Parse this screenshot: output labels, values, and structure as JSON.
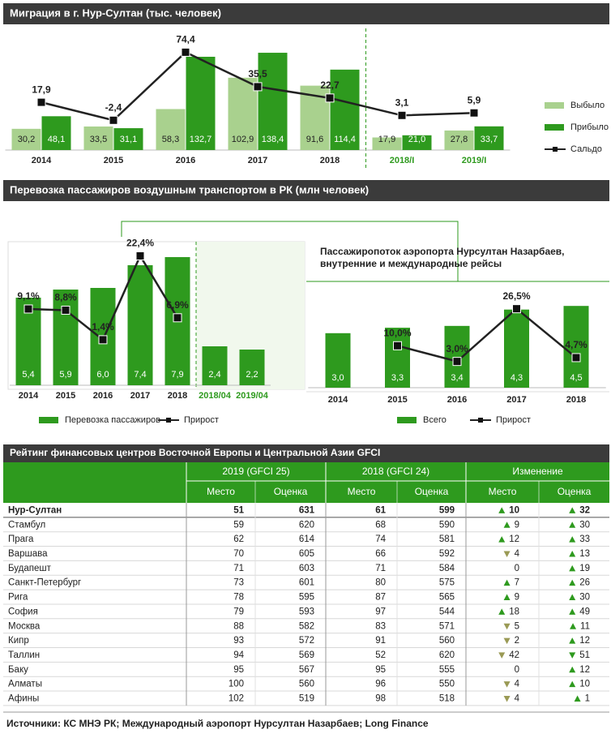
{
  "chart_data": [
    {
      "type": "bar",
      "title": "Миграция в г. Нур-Султан  (тыс. человек)",
      "categories": [
        "2014",
        "2015",
        "2016",
        "2017",
        "2018",
        "2018/I",
        "2019/I"
      ],
      "category_colors": [
        "#222222",
        "#222222",
        "#222222",
        "#222222",
        "#222222",
        "#2e9a1e",
        "#2e9a1e"
      ],
      "series": [
        {
          "name": "Выбыло",
          "type": "bar",
          "color": "#a9d18e",
          "values": [
            30.2,
            33.5,
            58.3,
            102.9,
            91.6,
            17.9,
            27.8
          ],
          "value_labels": [
            "30,2",
            "33,5",
            "58,3",
            "102,9",
            "91,6",
            "17,9",
            "27,8"
          ]
        },
        {
          "name": "Прибыло",
          "type": "bar",
          "color": "#2e9a1e",
          "values": [
            48.1,
            31.1,
            132.7,
            138.4,
            114.4,
            21.0,
            33.7
          ],
          "value_labels": [
            "48,1",
            "31,1",
            "132,7",
            "138,4",
            "114,4",
            "21,0",
            "33,7"
          ]
        },
        {
          "name": "Сальдо",
          "type": "line",
          "axis": "y2",
          "color": "#222222",
          "values": [
            17.9,
            -2.4,
            74.4,
            35.5,
            22.7,
            3.1,
            5.9
          ],
          "value_labels": [
            "17,9",
            "-2,4",
            "74,4",
            "35,5",
            "22,7",
            "3,1",
            "5,9"
          ]
        }
      ],
      "ylim": [
        0,
        150
      ],
      "y2lim": [
        -36,
        83
      ]
    },
    {
      "type": "bar",
      "title": "Перевозка пассажиров воздушным  транспортом  в РК (млн человек)",
      "categories": [
        "2014",
        "2015",
        "2016",
        "2017",
        "2018",
        "2018/04",
        "2019/04"
      ],
      "category_colors": [
        "#222222",
        "#222222",
        "#222222",
        "#222222",
        "#222222",
        "#2e9a1e",
        "#2e9a1e"
      ],
      "series": [
        {
          "name": "Перевозка пассажиров",
          "type": "bar",
          "color": "#2e9a1e",
          "values": [
            5.4,
            5.9,
            6.0,
            7.4,
            7.9,
            2.4,
            2.2
          ],
          "value_labels": [
            "5,4",
            "5,9",
            "6,0",
            "7,4",
            "7,9",
            "2,4",
            "2,2"
          ]
        },
        {
          "name": "Прирост",
          "type": "line",
          "axis": "y2",
          "color": "#222222",
          "values": [
            9.1,
            8.8,
            1.4,
            22.4,
            6.9,
            null,
            null
          ],
          "value_labels": [
            "9,1%",
            "8,8%",
            "1,4%",
            "22,4%",
            "6,9%",
            null,
            null
          ]
        }
      ],
      "ylim": [
        0,
        8
      ],
      "y2lim": [
        -10,
        22.5
      ]
    },
    {
      "type": "bar",
      "title": [
        "Пассажиропоток аэропорта Нурсултан Назарбаев,",
        "внутренние и международные рейсы"
      ],
      "categories": [
        "2014",
        "2015",
        "2016",
        "2017",
        "2018"
      ],
      "category_colors": [
        "#222222",
        "#222222",
        "#222222",
        "#222222",
        "#222222"
      ],
      "series": [
        {
          "name": "Всего",
          "type": "bar",
          "color": "#2e9a1e",
          "values": [
            3.0,
            3.3,
            3.4,
            4.3,
            4.5
          ],
          "value_labels": [
            "3,0",
            "3,3",
            "3,4",
            "4,3",
            "4,5"
          ]
        },
        {
          "name": "Прирост",
          "type": "line",
          "axis": "y2",
          "color": "#222222",
          "values": [
            null,
            10.0,
            3.0,
            26.5,
            4.7
          ],
          "value_labels": [
            null,
            "10,0%",
            "3,0%",
            "26,5%",
            "4,7%"
          ]
        }
      ],
      "ylim": [
        0,
        5
      ],
      "y2lim": [
        -8.7,
        31.8
      ]
    }
  ],
  "table": {
    "title": "Рейтинг финансовых центров Восточной Европы и Центральной Азии GFCI",
    "groups": [
      "2019 (GFCI 25)",
      "2018 (GFCI 24)",
      "Изменение"
    ],
    "columns": [
      "Место",
      "Оценка",
      "Место",
      "Оценка",
      "Место",
      "Оценка"
    ],
    "rows": [
      [
        "Нур-Султан",
        51,
        631,
        61,
        599,
        10,
        32
      ],
      [
        "Стамбул",
        59,
        620,
        68,
        590,
        9,
        30
      ],
      [
        "Прага",
        62,
        614,
        74,
        581,
        12,
        33
      ],
      [
        "Варшава",
        70,
        605,
        66,
        592,
        {
          "value": -4,
          "label": "4"
        },
        13
      ],
      [
        "Будапешт",
        71,
        603,
        71,
        584,
        0,
        19
      ],
      [
        "Санкт-Петербург",
        73,
        601,
        80,
        575,
        7,
        26
      ],
      [
        "Рига",
        78,
        595,
        87,
        565,
        9,
        30
      ],
      [
        "София",
        79,
        593,
        97,
        544,
        18,
        49
      ],
      [
        "Москва",
        88,
        582,
        83,
        571,
        {
          "value": -5,
          "label": "5"
        },
        11
      ],
      [
        "Кипр",
        93,
        572,
        91,
        560,
        {
          "value": -2,
          "label": "2"
        },
        12
      ],
      [
        "Таллин",
        94,
        569,
        52,
        620,
        {
          "value": -42,
          "label": "42"
        },
        {
          "value": -51,
          "label": "51"
        }
      ],
      [
        "Баку",
        95,
        567,
        95,
        555,
        0,
        12
      ],
      [
        "Алматы",
        100,
        560,
        96,
        550,
        {
          "value": -4,
          "label": "4"
        },
        10
      ],
      [
        "Афины",
        102,
        519,
        98,
        518,
        {
          "value": -4,
          "label": "4"
        },
        1
      ]
    ]
  },
  "footer": "Источники:  КС МНЭ РК; Международный аэропорт Нурсултан Назарбаев; Long Finance"
}
